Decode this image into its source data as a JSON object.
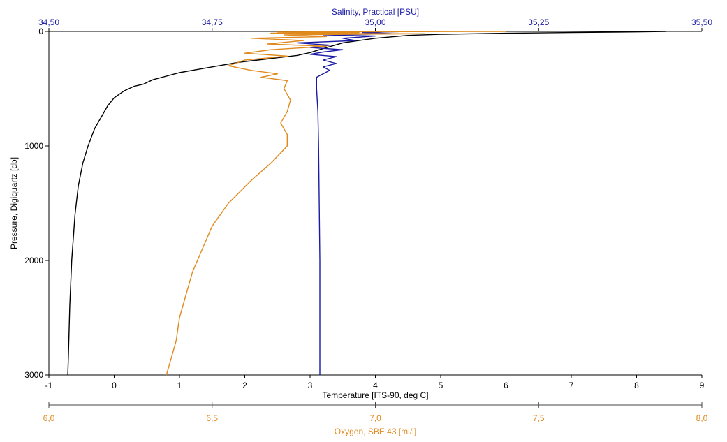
{
  "chart_data": {
    "type": "line",
    "grid": false,
    "legend": "none",
    "y_axis": {
      "label": "Pressure, Digiquartz [db]",
      "range": [
        0,
        3000
      ],
      "inverted": true,
      "ticks": [
        0,
        1000,
        2000,
        3000
      ],
      "tick_labels": [
        "0",
        "1000",
        "2000",
        "3000"
      ],
      "color": "#000000"
    },
    "x_axes": [
      {
        "id": "salinity",
        "label": "Salinity, Practical [PSU]",
        "position": "top",
        "range": [
          34.5,
          35.5
        ],
        "ticks": [
          34.5,
          34.75,
          35.0,
          35.25,
          35.5
        ],
        "tick_labels": [
          "34,50",
          "34,75",
          "35,00",
          "35,25",
          "35,50"
        ],
        "color": "#1a1aa6"
      },
      {
        "id": "temperature",
        "label": "Temperature [ITS-90, deg C]",
        "position": "bottom",
        "range": [
          -1,
          9
        ],
        "ticks": [
          -1,
          0,
          1,
          2,
          3,
          4,
          5,
          6,
          7,
          8,
          9
        ],
        "tick_labels": [
          "-1",
          "0",
          "1",
          "2",
          "3",
          "4",
          "5",
          "6",
          "7",
          "8",
          "9"
        ],
        "color": "#000000"
      },
      {
        "id": "oxygen",
        "label": "Oxygen, SBE 43 [ml/l]",
        "position": "bottom-offset",
        "range": [
          6.0,
          8.0
        ],
        "ticks": [
          6.0,
          6.5,
          7.0,
          7.5,
          8.0
        ],
        "tick_labels": [
          "6,0",
          "6,5",
          "7,0",
          "7,5",
          "8,0"
        ],
        "color": "#e08a1e"
      }
    ],
    "series": [
      {
        "axis": "temperature",
        "color": "#000000",
        "points": [
          [
            8.45,
            0
          ],
          [
            8.0,
            4
          ],
          [
            7.0,
            10
          ],
          [
            6.0,
            16
          ],
          [
            5.0,
            25
          ],
          [
            4.5,
            35
          ],
          [
            4.0,
            60
          ],
          [
            3.5,
            100
          ],
          [
            3.2,
            150
          ],
          [
            3.0,
            185
          ],
          [
            2.8,
            210
          ],
          [
            2.5,
            230
          ],
          [
            2.2,
            250
          ],
          [
            1.9,
            270
          ],
          [
            1.6,
            300
          ],
          [
            1.3,
            330
          ],
          [
            1.0,
            360
          ],
          [
            0.8,
            390
          ],
          [
            0.6,
            420
          ],
          [
            0.45,
            460
          ],
          [
            0.3,
            480
          ],
          [
            0.15,
            520
          ],
          [
            0.0,
            580
          ],
          [
            -0.1,
            650
          ],
          [
            -0.2,
            750
          ],
          [
            -0.3,
            850
          ],
          [
            -0.4,
            1000
          ],
          [
            -0.48,
            1150
          ],
          [
            -0.55,
            1350
          ],
          [
            -0.6,
            1600
          ],
          [
            -0.65,
            2000
          ],
          [
            -0.68,
            2400
          ],
          [
            -0.7,
            2800
          ],
          [
            -0.71,
            3000
          ]
        ]
      },
      {
        "axis": "salinity",
        "color": "#1a1aa6",
        "points": [
          [
            35.05,
            0
          ],
          [
            34.98,
            10
          ],
          [
            35.03,
            20
          ],
          [
            34.92,
            30
          ],
          [
            35.0,
            40
          ],
          [
            34.95,
            60
          ],
          [
            34.97,
            80
          ],
          [
            34.88,
            100
          ],
          [
            34.93,
            120
          ],
          [
            34.9,
            140
          ],
          [
            34.95,
            160
          ],
          [
            34.92,
            180
          ],
          [
            34.9,
            200
          ],
          [
            34.94,
            220
          ],
          [
            34.92,
            250
          ],
          [
            34.94,
            280
          ],
          [
            34.92,
            310
          ],
          [
            34.93,
            340
          ],
          [
            34.91,
            400
          ],
          [
            34.91,
            500
          ],
          [
            34.912,
            700
          ],
          [
            34.913,
            1000
          ],
          [
            34.914,
            1500
          ],
          [
            34.915,
            2000
          ],
          [
            34.915,
            2500
          ],
          [
            34.915,
            3000
          ]
        ]
      },
      {
        "axis": "oxygen",
        "color": "#e08a1e",
        "points": [
          [
            7.4,
            0
          ],
          [
            6.7,
            5
          ],
          [
            6.95,
            10
          ],
          [
            6.68,
            15
          ],
          [
            7.15,
            20
          ],
          [
            6.72,
            30
          ],
          [
            6.85,
            45
          ],
          [
            6.62,
            60
          ],
          [
            6.78,
            80
          ],
          [
            6.67,
            110
          ],
          [
            6.85,
            130
          ],
          [
            6.68,
            160
          ],
          [
            6.6,
            190
          ],
          [
            6.73,
            215
          ],
          [
            6.6,
            250
          ],
          [
            6.55,
            300
          ],
          [
            6.62,
            340
          ],
          [
            6.7,
            370
          ],
          [
            6.65,
            400
          ],
          [
            6.73,
            430
          ],
          [
            6.72,
            500
          ],
          [
            6.74,
            600
          ],
          [
            6.73,
            700
          ],
          [
            6.71,
            800
          ],
          [
            6.73,
            900
          ],
          [
            6.73,
            1000
          ],
          [
            6.68,
            1150
          ],
          [
            6.62,
            1300
          ],
          [
            6.55,
            1500
          ],
          [
            6.5,
            1700
          ],
          [
            6.47,
            1900
          ],
          [
            6.44,
            2100
          ],
          [
            6.42,
            2300
          ],
          [
            6.4,
            2500
          ],
          [
            6.39,
            2700
          ],
          [
            6.37,
            2900
          ],
          [
            6.36,
            3000
          ]
        ]
      }
    ]
  }
}
